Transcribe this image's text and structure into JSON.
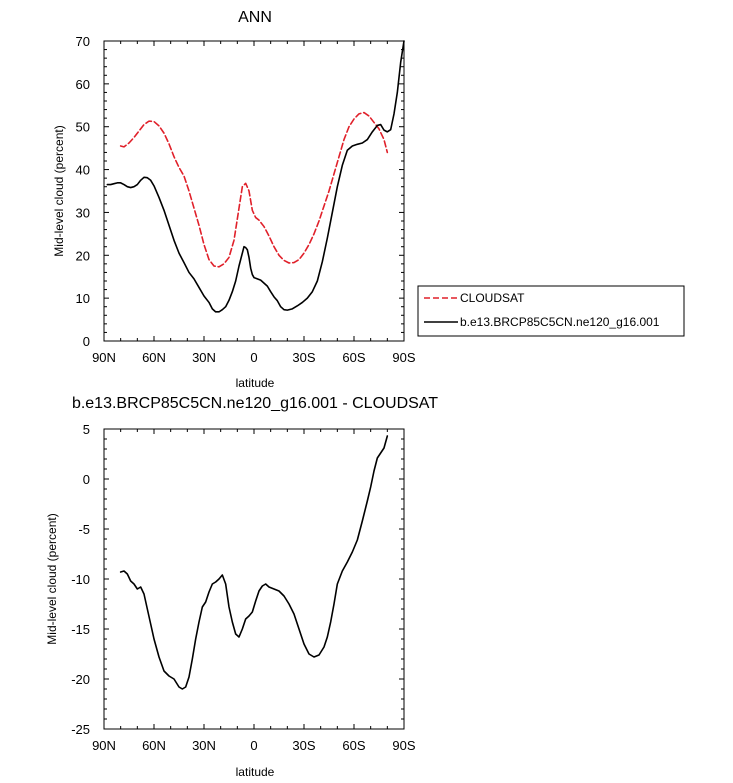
{
  "chart_data": [
    {
      "type": "line",
      "title": "ANN",
      "xlabel": "latitude",
      "ylabel": "Mid-level cloud (percent)",
      "xlim": [
        -90,
        90
      ],
      "ylim": [
        0,
        70
      ],
      "x_ticks": [
        -90,
        -60,
        -30,
        0,
        30,
        60,
        90
      ],
      "x_tick_labels": [
        "90N",
        "60N",
        "30N",
        "0",
        "30S",
        "60S",
        "90S"
      ],
      "y_ticks": [
        0,
        10,
        20,
        30,
        40,
        50,
        60,
        70
      ],
      "y_tick_labels": [
        "0",
        "10",
        "20",
        "30",
        "40",
        "50",
        "60",
        "70"
      ],
      "legend_position": "right",
      "series": [
        {
          "name": "CLOUDSAT",
          "style": "dashed",
          "color": "#e0202a",
          "x": [
            -80,
            -78,
            -75,
            -72,
            -69,
            -66,
            -63,
            -60,
            -57,
            -54,
            -51,
            -48,
            -45,
            -42,
            -39,
            -36,
            -33,
            -30,
            -27,
            -24,
            -21,
            -18,
            -15,
            -12,
            -9,
            -7,
            -5,
            -3,
            -1,
            1,
            3,
            6,
            9,
            12,
            15,
            18,
            21,
            24,
            27,
            30,
            33,
            36,
            39,
            42,
            45,
            48,
            51,
            54,
            57,
            60,
            63,
            66,
            69,
            72,
            75,
            78,
            80
          ],
          "values": [
            45.5,
            45.3,
            46.2,
            47.5,
            49,
            50.5,
            51.3,
            51.2,
            50.2,
            48.5,
            46,
            43,
            40.5,
            38.5,
            35,
            31,
            27,
            22.5,
            19,
            17.5,
            17.3,
            18,
            19.5,
            23.5,
            31,
            36,
            36.8,
            35,
            30.5,
            28.8,
            28.2,
            26.7,
            24.5,
            22,
            20,
            18.8,
            18.2,
            18.3,
            19,
            20.5,
            22.5,
            25,
            28,
            31.5,
            35,
            39,
            43,
            47,
            50,
            51.8,
            53,
            53.3,
            52.5,
            51,
            49.5,
            47,
            44
          ]
        },
        {
          "name": "b.e13.BRCP85C5CN.ne120_g16.001",
          "style": "solid",
          "color": "#000000",
          "x": [
            -88,
            -86,
            -84,
            -82,
            -80,
            -78,
            -76,
            -74,
            -72,
            -70,
            -68,
            -66,
            -64,
            -62,
            -60,
            -57,
            -54,
            -51,
            -48,
            -45,
            -42,
            -39,
            -36,
            -33,
            -30,
            -27,
            -25,
            -23,
            -21,
            -19,
            -17,
            -15,
            -13,
            -11,
            -9,
            -7,
            -6,
            -5,
            -4,
            -3,
            -2,
            -1,
            0,
            2,
            4,
            6,
            8,
            10,
            12,
            14,
            16,
            18,
            20,
            23,
            26,
            29,
            32,
            35,
            38,
            41,
            44,
            47,
            50,
            53,
            56,
            59,
            62,
            65,
            68,
            71,
            74,
            76,
            78,
            80,
            82,
            84,
            86,
            88,
            90
          ],
          "values": [
            36.5,
            36.5,
            36.7,
            36.9,
            36.9,
            36.5,
            36,
            35.8,
            36,
            36.5,
            37.5,
            38.2,
            38.1,
            37.5,
            36.2,
            33.5,
            30.5,
            27,
            23.5,
            20.5,
            18.3,
            16,
            14.5,
            12.5,
            10.5,
            9,
            7.5,
            6.8,
            6.8,
            7.3,
            8,
            9.5,
            11.5,
            14,
            17.5,
            20.5,
            22,
            21.8,
            21.3,
            19.5,
            17,
            15.5,
            14.8,
            14.5,
            14.2,
            13.5,
            12.8,
            11.5,
            10.3,
            9.4,
            8,
            7.3,
            7.2,
            7.5,
            8.2,
            9,
            10,
            11.5,
            14,
            18.5,
            24,
            30,
            36,
            41,
            44.5,
            45.5,
            45.9,
            46.2,
            47,
            48.8,
            50.3,
            50.5,
            49.2,
            48.8,
            49.3,
            53,
            58,
            65,
            70
          ]
        }
      ]
    },
    {
      "type": "line",
      "title": "b.e13.BRCP85C5CN.ne120_g16.001 - CLOUDSAT",
      "xlabel": "latitude",
      "ylabel": "Mid-level cloud (percent)",
      "xlim": [
        -90,
        90
      ],
      "ylim": [
        -25,
        5
      ],
      "x_ticks": [
        -90,
        -60,
        -30,
        0,
        30,
        60,
        90
      ],
      "x_tick_labels": [
        "90N",
        "60N",
        "30N",
        "0",
        "30S",
        "60S",
        "90S"
      ],
      "y_ticks": [
        -25,
        -20,
        -15,
        -10,
        -5,
        0,
        5
      ],
      "y_tick_labels": [
        "-25",
        "-20",
        "-15",
        "-10",
        "-5",
        "0",
        "5"
      ],
      "series": [
        {
          "name": "b.e13.BRCP85C5CN.ne120_g16.001 - CLOUDSAT",
          "style": "solid",
          "color": "#000000",
          "x": [
            -80,
            -78,
            -76,
            -74,
            -72,
            -70,
            -68,
            -66,
            -64,
            -62,
            -60,
            -57,
            -54,
            -51,
            -48,
            -45,
            -43,
            -41,
            -39,
            -37,
            -35,
            -33,
            -31,
            -29,
            -27,
            -25,
            -23,
            -21,
            -19,
            -17,
            -15,
            -13,
            -11,
            -9,
            -7,
            -5,
            -3,
            -1,
            1,
            3,
            5,
            7,
            9,
            12,
            15,
            18,
            21,
            24,
            27,
            30,
            33,
            36,
            39,
            42,
            44,
            46,
            48,
            50,
            53,
            56,
            59,
            62,
            65,
            68,
            70,
            72,
            74,
            76,
            78,
            80
          ],
          "values": [
            -9.3,
            -9.2,
            -9.5,
            -10.2,
            -10.5,
            -11,
            -10.8,
            -11.5,
            -13,
            -14.5,
            -16,
            -17.8,
            -19.2,
            -19.7,
            -20,
            -20.8,
            -21,
            -20.8,
            -19.8,
            -18,
            -16,
            -14.3,
            -12.8,
            -12.3,
            -11.3,
            -10.5,
            -10.3,
            -10,
            -9.6,
            -10.5,
            -12.8,
            -14.3,
            -15.5,
            -15.8,
            -15,
            -14,
            -13.7,
            -13.3,
            -12.2,
            -11.2,
            -10.7,
            -10.5,
            -10.8,
            -11,
            -11.2,
            -11.7,
            -12.5,
            -13.5,
            -15,
            -16.5,
            -17.5,
            -17.8,
            -17.6,
            -16.8,
            -15.8,
            -14.3,
            -12.5,
            -10.5,
            -9.2,
            -8.3,
            -7.3,
            -6.1,
            -4.2,
            -2.2,
            -0.8,
            0.8,
            2.1,
            2.6,
            3.1,
            4.3
          ]
        }
      ]
    }
  ]
}
